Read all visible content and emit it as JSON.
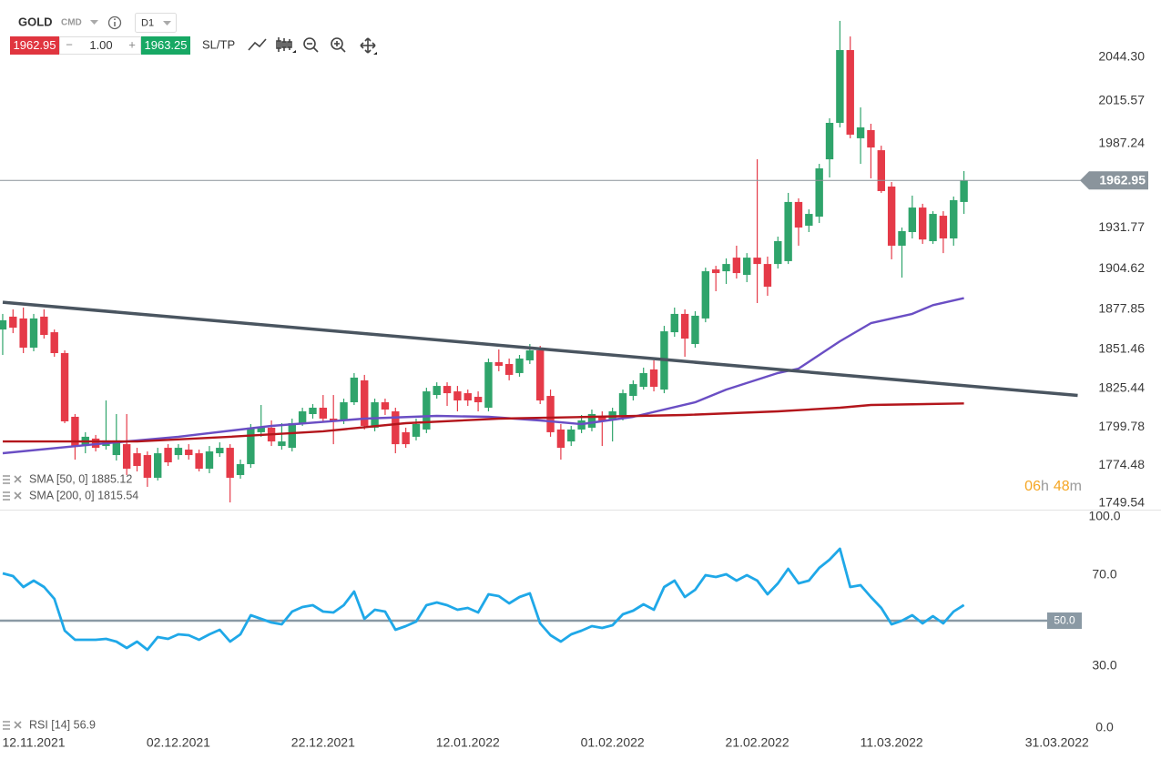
{
  "header": {
    "symbol": "GOLD",
    "asset_class": "CMD",
    "timeframe": "D1",
    "minus": "−",
    "volume": "1.00",
    "plus": "+",
    "ask": 1963.25,
    "sl_tp": "SL/TP"
  },
  "chart_data": [
    {
      "type": "candlestick",
      "categories": [
        null,
        null,
        null,
        null,
        null,
        null,
        null,
        null,
        null,
        null,
        null,
        null,
        null,
        null,
        null,
        null,
        null,
        null,
        null,
        null,
        null,
        null,
        null,
        null,
        null,
        null,
        null,
        null,
        null,
        null,
        null,
        null,
        null,
        null,
        null,
        null,
        null,
        null,
        null,
        null,
        null,
        null,
        null,
        null,
        null,
        null,
        null,
        null,
        null,
        null,
        null,
        null,
        null,
        null,
        null,
        null,
        null,
        null,
        null,
        null,
        null,
        null,
        null,
        null,
        null,
        null,
        null,
        null,
        null,
        null,
        null,
        null,
        null,
        null,
        null,
        null,
        null,
        null,
        null,
        null,
        null,
        null,
        null,
        null,
        null,
        null,
        null,
        null,
        null,
        null,
        null,
        null,
        null,
        null
      ],
      "open": [
        1864.4,
        1872.9,
        1871.7,
        1852.4,
        1872.9,
        1862.6,
        1848.8,
        1806.7,
        1787.4,
        1792.3,
        1787.4,
        1781.4,
        1788.6,
        1782.6,
        1781.4,
        1766.4,
        1786.2,
        1781.4,
        1785.0,
        1782.6,
        1772.4,
        1782.6,
        1786.2,
        1768.2,
        1775.4,
        1796.5,
        1799.5,
        1787.4,
        1786.2,
        1802.5,
        1808.5,
        1812.7,
        1805.5,
        1804.3,
        1816.3,
        1830.8,
        1799.5,
        1816.3,
        1810.3,
        1796.5,
        1793.5,
        1798.3,
        1821.1,
        1827.1,
        1823.5,
        1822.3,
        1819.9,
        1812.7,
        1842.8,
        1841.6,
        1835.6,
        1844.0,
        1850.6,
        1820.5,
        1798.3,
        1790.4,
        1798.3,
        1799.5,
        1806.7,
        1804.3,
        1806.7,
        1820.5,
        1826.5,
        1838.0,
        1824.7,
        1862.6,
        1874.7,
        1854.8,
        1871.7,
        1904.1,
        1902.9,
        1911.9,
        1900.5,
        1911.9,
        1907.7,
        1907.7,
        1909.6,
        1948.7,
        1933.0,
        1939.0,
        1976.9,
        2001.0,
        2049.1,
        1990.8,
        1996.2,
        1982.9,
        1958.9,
        1919.8,
        1928.8,
        1945.0,
        1922.8,
        1939.6,
        1924.6,
        1948.7
      ],
      "high": [
        1874.7,
        1877.7,
        1878.9,
        1874.7,
        1877.7,
        1864.4,
        1850.6,
        1808.5,
        1796.5,
        1794.7,
        1817.5,
        1808.5,
        1808.5,
        1786.2,
        1783.8,
        1786.2,
        1788.6,
        1788.6,
        1788.6,
        1785.0,
        1787.4,
        1789.8,
        1788.6,
        1778.4,
        1801.9,
        1814.5,
        1804.3,
        1802.5,
        1805.5,
        1812.7,
        1815.1,
        1821.1,
        1821.1,
        1818.7,
        1835.6,
        1834.4,
        1818.7,
        1818.7,
        1812.7,
        1799.5,
        1805.5,
        1825.9,
        1829.5,
        1829.5,
        1827.1,
        1824.7,
        1823.5,
        1845.2,
        1851.2,
        1845.2,
        1847.6,
        1854.8,
        1853.6,
        1824.7,
        1801.9,
        1800.7,
        1807.9,
        1811.5,
        1810.3,
        1812.7,
        1824.7,
        1830.8,
        1839.2,
        1844.0,
        1866.8,
        1878.9,
        1877.7,
        1876.5,
        1905.3,
        1906.5,
        1911.4,
        1919.8,
        1914.9,
        1976.9,
        1912.6,
        1925.8,
        1954.7,
        1951.1,
        1943.8,
        1973.9,
        2004.0,
        2068.4,
        2058.1,
        2011.2,
        2000.4,
        1985.9,
        1961.9,
        1931.8,
        1952.9,
        1947.5,
        1942.6,
        1942.6,
        1952.3,
        1969.1
      ],
      "low": [
        1847.6,
        1862.0,
        1848.8,
        1850.0,
        1858.4,
        1846.4,
        1802.5,
        1778.4,
        1782.6,
        1783.8,
        1785.0,
        1777.8,
        1768.2,
        1770.6,
        1760.4,
        1764.6,
        1774.2,
        1778.4,
        1778.4,
        1770.6,
        1769.4,
        1780.2,
        1750.1,
        1765.8,
        1773.0,
        1793.5,
        1787.4,
        1785.0,
        1783.8,
        1800.7,
        1805.5,
        1803.1,
        1788.6,
        1801.9,
        1814.5,
        1798.3,
        1797.1,
        1807.9,
        1782.6,
        1786.2,
        1791.1,
        1795.9,
        1818.7,
        1813.9,
        1810.3,
        1813.9,
        1810.3,
        1810.3,
        1836.8,
        1830.8,
        1833.2,
        1841.6,
        1815.1,
        1793.5,
        1778.4,
        1787.4,
        1795.9,
        1797.1,
        1787.4,
        1790.4,
        1804.3,
        1817.5,
        1824.7,
        1823.5,
        1822.3,
        1859.6,
        1846.4,
        1852.4,
        1869.2,
        1889.7,
        1894.5,
        1898.1,
        1895.7,
        1881.9,
        1886.7,
        1904.7,
        1907.7,
        1919.8,
        1928.8,
        1934.8,
        1964.9,
        1998.0,
        1990.8,
        1973.9,
        1964.3,
        1954.7,
        1910.8,
        1898.7,
        1924.6,
        1921.0,
        1921.0,
        1914.9,
        1919.8,
        1940.8
      ],
      "close": [
        1870.5,
        1865.6,
        1852.4,
        1871.7,
        1860.8,
        1848.8,
        1803.7,
        1787.4,
        1793.5,
        1786.2,
        1791.1,
        1791.1,
        1772.4,
        1774.2,
        1766.4,
        1782.6,
        1776.6,
        1786.2,
        1781.4,
        1772.4,
        1783.8,
        1786.2,
        1766.4,
        1775.4,
        1799.5,
        1799.5,
        1790.4,
        1790.4,
        1802.5,
        1810.3,
        1812.7,
        1805.5,
        1803.7,
        1816.3,
        1832.6,
        1800.7,
        1816.3,
        1811.5,
        1788.6,
        1788.6,
        1801.9,
        1823.5,
        1827.1,
        1822.3,
        1817.5,
        1817.5,
        1816.3,
        1842.8,
        1840.4,
        1834.4,
        1845.2,
        1850.6,
        1817.5,
        1796.5,
        1786.2,
        1798.3,
        1804.3,
        1808.5,
        1804.3,
        1810.3,
        1822.3,
        1828.3,
        1835.6,
        1826.5,
        1863.2,
        1874.7,
        1858.4,
        1873.5,
        1902.9,
        1901.7,
        1907.7,
        1901.7,
        1911.9,
        1907.7,
        1892.7,
        1922.8,
        1948.7,
        1931.8,
        1940.8,
        1970.9,
        2001.0,
        2049.1,
        1993.2,
        1998.0,
        1984.7,
        1955.9,
        1919.8,
        1929.4,
        1945.0,
        1923.9,
        1940.8,
        1924.6,
        1949.9,
        1962.95
      ],
      "up_color": "#2fa46b",
      "down_color": "#e53a48",
      "xlim": [
        -0.26,
        104.4
      ],
      "xticks": [
        {
          "value": 3,
          "label": "12.11.2021"
        },
        {
          "value": 17,
          "label": "02.12.2021"
        },
        {
          "value": 31,
          "label": "22.12.2021"
        },
        {
          "value": 45,
          "label": "12.01.2022"
        },
        {
          "value": 59,
          "label": "01.02.2022"
        },
        {
          "value": 73,
          "label": "21.02.2022"
        },
        {
          "value": 86,
          "label": "11.03.2022"
        },
        {
          "value": 102,
          "label": "31.03.2022"
        }
      ],
      "ylim": [
        1745.33,
        2082.2
      ],
      "yticks": [
        {
          "value": 2044.3,
          "label": "2044.30"
        },
        2015.57,
        1987.24,
        1931.77,
        1904.62,
        1877.85,
        1851.46,
        1825.44,
        1799.78,
        1774.48,
        1749.54
      ],
      "series": [
        {
          "name": "SMA [50, 0]",
          "color": "#6a4ec4",
          "x": [
            0,
            9,
            17,
            26,
            35,
            42,
            47,
            52,
            56,
            61,
            67,
            70,
            75,
            77,
            81,
            84,
            88,
            90,
            93
          ],
          "values": [
            1782.6,
            1788.6,
            1793.5,
            1800.7,
            1805.5,
            1807.3,
            1806.7,
            1804.3,
            1801.9,
            1806.7,
            1816.3,
            1824.7,
            1835.6,
            1838.6,
            1856.6,
            1868.6,
            1874.7,
            1880.5,
            1885.12
          ]
        },
        {
          "name": "SMA [200, 0]",
          "color": "#b3151b",
          "x": [
            0,
            13,
            22,
            31,
            39,
            48,
            57,
            66,
            75,
            81,
            84,
            93
          ],
          "values": [
            1790.4,
            1790.4,
            1793.5,
            1797.1,
            1802.5,
            1805.5,
            1806.7,
            1807.9,
            1810.3,
            1812.7,
            1814.5,
            1815.54
          ]
        }
      ],
      "trendline": {
        "color": "#4a5560",
        "x": [
          0,
          104
        ],
        "values": [
          1882.4,
          1820.8
        ]
      },
      "countdown": [
        "06",
        "h",
        "48",
        "m"
      ]
    },
    {
      "type": "line",
      "ylim": [
        0,
        100
      ],
      "yticks": [
        {
          "value": 100,
          "label": "100.0"
        },
        {
          "value": 70,
          "label": "70.0"
        },
        {
          "value": 30,
          "label": "30.0"
        },
        {
          "value": 0,
          "label": "0.0"
        }
      ],
      "levels": [
        {
          "value": 50,
          "label": "50.0"
        }
      ],
      "series": [
        {
          "name": "RSI [14]",
          "color": "#1fa8e8",
          "values": [
            70.8,
            69.6,
            64.8,
            67.6,
            64.8,
            59.6,
            45.6,
            41.6,
            41.6,
            41.6,
            42,
            40.8,
            38,
            40.8,
            37.2,
            42.8,
            42,
            44,
            43.6,
            41.6,
            44,
            46,
            40.8,
            44,
            52.4,
            50.8,
            49.2,
            48.4,
            54,
            56,
            56.8,
            54,
            53.6,
            56.8,
            62.8,
            50.8,
            54.8,
            54,
            46,
            47.6,
            49.6,
            56.8,
            58,
            56.8,
            54.8,
            55.6,
            53.6,
            61.6,
            60.8,
            57.6,
            60.4,
            62,
            48.8,
            43.6,
            40.8,
            44,
            45.6,
            47.6,
            46.8,
            48,
            52.8,
            54.4,
            57.2,
            54.8,
            64.8,
            67.6,
            60.4,
            63.6,
            70,
            69.2,
            70.4,
            67.6,
            70,
            67.6,
            61.6,
            66.4,
            72.8,
            66.4,
            67.6,
            73.2,
            76.8,
            81.6,
            64.8,
            65.6,
            60.4,
            55.6,
            48.4,
            50,
            52.4,
            48.8,
            52,
            48.8,
            54,
            56.9
          ]
        }
      ]
    }
  ]
}
